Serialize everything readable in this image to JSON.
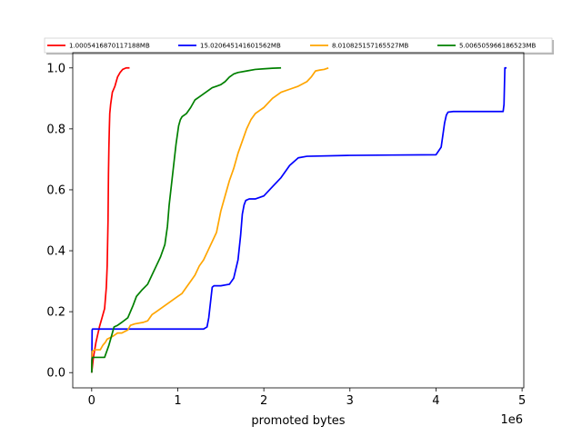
{
  "chart_data": {
    "type": "line",
    "title": "",
    "xlabel": "promoted bytes",
    "ylabel": "",
    "x_offset_label": "1e6",
    "x_scale": 1000000,
    "xlim": [
      -220000,
      5020000
    ],
    "ylim": [
      -0.05,
      1.05
    ],
    "xticks": [
      0,
      1,
      2,
      3,
      4,
      5
    ],
    "yticks": [
      0.0,
      0.2,
      0.4,
      0.6,
      0.8,
      1.0
    ],
    "xtick_labels": [
      "0",
      "1",
      "2",
      "3",
      "4",
      "5"
    ],
    "ytick_labels": [
      "0.0",
      "0.2",
      "0.4",
      "0.6",
      "0.8",
      "1.0"
    ],
    "grid": false,
    "legend_placement": "top",
    "series": [
      {
        "name": "1.0005416870117188MB",
        "color": "#ff0000",
        "x": [
          0,
          20000,
          50000,
          90000,
          120000,
          150000,
          170000,
          180000,
          190000,
          195000,
          200000,
          205000,
          210000,
          220000,
          240000,
          270000,
          300000,
          330000,
          360000,
          400000,
          440000
        ],
        "y": [
          0.0,
          0.05,
          0.1,
          0.15,
          0.18,
          0.21,
          0.28,
          0.35,
          0.5,
          0.65,
          0.74,
          0.8,
          0.85,
          0.88,
          0.92,
          0.94,
          0.97,
          0.985,
          0.995,
          1.0,
          1.0
        ]
      },
      {
        "name": "15.020645141601562MB",
        "color": "#0000ff",
        "x": [
          0,
          5000,
          10000,
          300000,
          800000,
          1300000,
          1340000,
          1360000,
          1380000,
          1400000,
          1420000,
          1500000,
          1600000,
          1650000,
          1700000,
          1730000,
          1750000,
          1770000,
          1790000,
          1830000,
          1900000,
          2000000,
          2100000,
          2200000,
          2300000,
          2400000,
          2500000,
          3000000,
          3500000,
          4000000,
          4060000,
          4080000,
          4100000,
          4120000,
          4140000,
          4200000,
          4500000,
          4780000,
          4790000,
          4800000,
          4820000
        ],
        "y": [
          0.0,
          0.14,
          0.143,
          0.143,
          0.143,
          0.143,
          0.15,
          0.18,
          0.23,
          0.28,
          0.285,
          0.285,
          0.29,
          0.31,
          0.37,
          0.45,
          0.52,
          0.55,
          0.565,
          0.57,
          0.57,
          0.58,
          0.61,
          0.64,
          0.68,
          0.705,
          0.71,
          0.713,
          0.714,
          0.715,
          0.74,
          0.78,
          0.82,
          0.845,
          0.855,
          0.857,
          0.857,
          0.857,
          0.88,
          1.0,
          1.0
        ]
      },
      {
        "name": "8.010825157165527MB",
        "color": "#ffa500",
        "x": [
          0,
          5000,
          40000,
          100000,
          130000,
          160000,
          180000,
          250000,
          300000,
          350000,
          420000,
          450000,
          500000,
          600000,
          650000,
          700000,
          750000,
          800000,
          850000,
          900000,
          950000,
          1000000,
          1050000,
          1100000,
          1150000,
          1200000,
          1250000,
          1300000,
          1350000,
          1400000,
          1450000,
          1500000,
          1550000,
          1600000,
          1650000,
          1700000,
          1750000,
          1800000,
          1850000,
          1900000,
          1950000,
          2000000,
          2100000,
          2200000,
          2300000,
          2400000,
          2500000,
          2550000,
          2600000,
          2650000,
          2700000,
          2750000
        ],
        "y": [
          0.0,
          0.07,
          0.075,
          0.075,
          0.09,
          0.1,
          0.11,
          0.12,
          0.13,
          0.13,
          0.14,
          0.155,
          0.16,
          0.165,
          0.17,
          0.19,
          0.2,
          0.21,
          0.22,
          0.23,
          0.24,
          0.25,
          0.26,
          0.28,
          0.3,
          0.32,
          0.35,
          0.37,
          0.4,
          0.43,
          0.46,
          0.53,
          0.58,
          0.63,
          0.67,
          0.72,
          0.76,
          0.8,
          0.83,
          0.85,
          0.86,
          0.87,
          0.9,
          0.92,
          0.93,
          0.94,
          0.955,
          0.97,
          0.99,
          0.993,
          0.995,
          1.0
        ]
      },
      {
        "name": "5.006505966186523MB",
        "color": "#008000",
        "x": [
          0,
          3000,
          10000,
          100000,
          150000,
          200000,
          230000,
          260000,
          300000,
          350000,
          420000,
          450000,
          480000,
          520000,
          580000,
          650000,
          700000,
          750000,
          800000,
          850000,
          880000,
          900000,
          920000,
          940000,
          960000,
          980000,
          1000000,
          1010000,
          1030000,
          1050000,
          1100000,
          1150000,
          1200000,
          1250000,
          1300000,
          1350000,
          1400000,
          1450000,
          1500000,
          1550000,
          1600000,
          1650000,
          1700000,
          1800000,
          1900000,
          2000000,
          2100000,
          2200000
        ],
        "y": [
          0.0,
          0.04,
          0.05,
          0.05,
          0.05,
          0.09,
          0.12,
          0.15,
          0.155,
          0.165,
          0.18,
          0.2,
          0.22,
          0.25,
          0.27,
          0.29,
          0.32,
          0.35,
          0.38,
          0.42,
          0.48,
          0.55,
          0.6,
          0.65,
          0.7,
          0.75,
          0.79,
          0.81,
          0.83,
          0.84,
          0.85,
          0.87,
          0.895,
          0.905,
          0.915,
          0.925,
          0.935,
          0.94,
          0.945,
          0.955,
          0.97,
          0.98,
          0.985,
          0.99,
          0.995,
          0.997,
          0.999,
          1.0
        ]
      }
    ]
  }
}
